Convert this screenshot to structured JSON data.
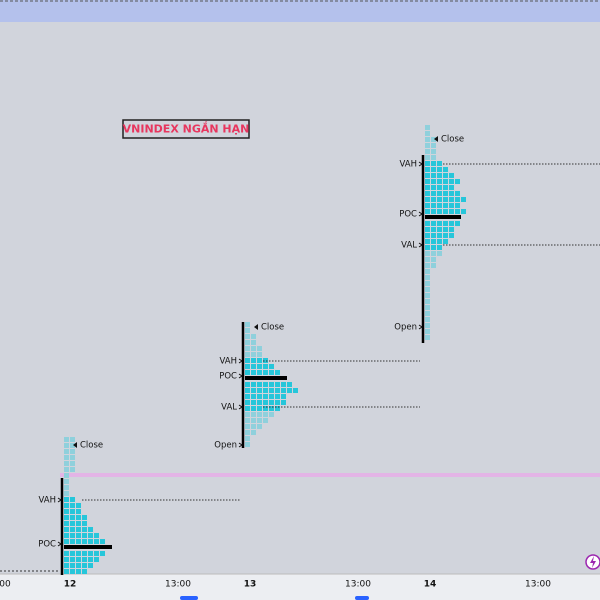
{
  "title": "VNINDEX NGẮN HẠN",
  "x_axis": [
    "00",
    "12",
    "13:00",
    "13",
    "13:00",
    "14",
    "13:00"
  ],
  "profiles": [
    {
      "labels": [
        "Close",
        "VAH",
        "POC"
      ],
      "tpo_counts": [
        2,
        2,
        2,
        2,
        2,
        2,
        1,
        1,
        1,
        1,
        2,
        3,
        3,
        4,
        4,
        5,
        6,
        7,
        8,
        7,
        6,
        5,
        4
      ]
    },
    {
      "labels": [
        "Close",
        "VAH",
        "POC",
        "VAL",
        "Open"
      ],
      "tpo_counts": [
        1,
        1,
        2,
        2,
        3,
        3,
        4,
        5,
        6,
        7,
        8,
        9,
        7,
        7,
        6,
        5,
        4,
        3,
        2,
        1,
        1
      ]
    },
    {
      "labels": [
        "Close",
        "VAH",
        "POC",
        "VAL",
        "Open"
      ],
      "tpo_counts": [
        1,
        1,
        2,
        2,
        2,
        2,
        3,
        4,
        5,
        6,
        5,
        6,
        7,
        6,
        7,
        6,
        6,
        5,
        5,
        4,
        3,
        3,
        2,
        2,
        1,
        1,
        1,
        1,
        1,
        1,
        1,
        1,
        1,
        1,
        1,
        1
      ]
    }
  ]
}
